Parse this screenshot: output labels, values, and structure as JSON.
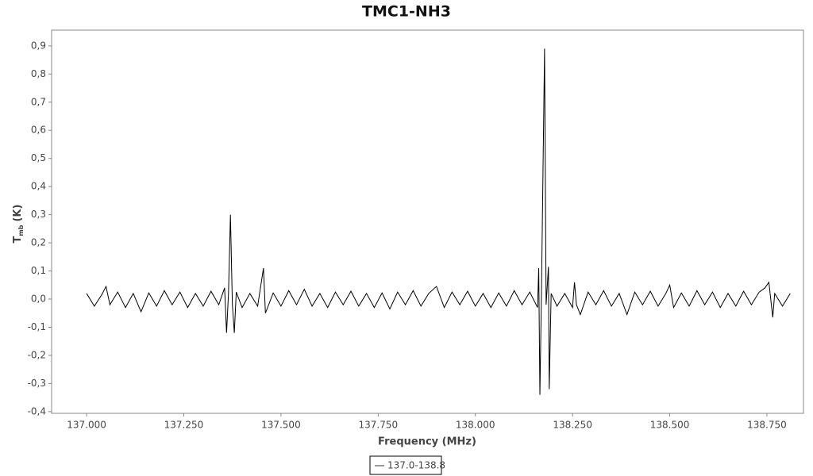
{
  "chart_data": {
    "type": "line",
    "title": "TMC1-NH3",
    "x_label": "Frequency (MHz)",
    "y_label": {
      "main": "T",
      "sub": "mb",
      "unit": "(K)"
    },
    "xlim": [
      136.91,
      138.844
    ],
    "ylim": [
      -0.406,
      0.956
    ],
    "xticks": [
      {
        "value": 137.0,
        "label": "137.000"
      },
      {
        "value": 137.25,
        "label": "137.250"
      },
      {
        "value": 137.5,
        "label": "137.500"
      },
      {
        "value": 137.75,
        "label": "137.750"
      },
      {
        "value": 138.0,
        "label": "138.000"
      },
      {
        "value": 138.25,
        "label": "138.250"
      },
      {
        "value": 138.5,
        "label": "138.500"
      },
      {
        "value": 138.75,
        "label": "138.750"
      }
    ],
    "yticks": [
      {
        "value": -0.4,
        "label": "-0,4"
      },
      {
        "value": -0.3,
        "label": "-0,3"
      },
      {
        "value": -0.2,
        "label": "-0,2"
      },
      {
        "value": -0.1,
        "label": "-0,1"
      },
      {
        "value": 0,
        "label": "0,0"
      },
      {
        "value": 0.1,
        "label": "0,1"
      },
      {
        "value": 0.2,
        "label": "0,2"
      },
      {
        "value": 0.3,
        "label": "0,3"
      },
      {
        "value": 0.4,
        "label": "0,4"
      },
      {
        "value": 0.5,
        "label": "0,5"
      },
      {
        "value": 0.6,
        "label": "0,6"
      },
      {
        "value": 0.7,
        "label": "0,7"
      },
      {
        "value": 0.8,
        "label": "0,8"
      },
      {
        "value": 0.9,
        "label": "0,9"
      }
    ],
    "grid": false,
    "legend": "bottom",
    "series": [
      {
        "name": "137.0-138.8",
        "color": "#000000",
        "x": [
          137.0,
          137.02,
          137.04,
          137.05,
          137.06,
          137.08,
          137.1,
          137.12,
          137.14,
          137.16,
          137.18,
          137.2,
          137.22,
          137.24,
          137.26,
          137.28,
          137.3,
          137.32,
          137.34,
          137.355,
          137.36,
          137.365,
          137.37,
          137.375,
          137.38,
          137.385,
          137.4,
          137.42,
          137.44,
          137.455,
          137.46,
          137.48,
          137.5,
          137.52,
          137.54,
          137.56,
          137.58,
          137.6,
          137.62,
          137.64,
          137.66,
          137.68,
          137.7,
          137.72,
          137.74,
          137.76,
          137.78,
          137.8,
          137.82,
          137.84,
          137.86,
          137.88,
          137.9,
          137.92,
          137.94,
          137.96,
          137.98,
          138.0,
          138.02,
          138.04,
          138.06,
          138.08,
          138.1,
          138.12,
          138.14,
          138.16,
          138.163,
          138.166,
          138.17,
          138.178,
          138.182,
          138.188,
          138.19,
          138.195,
          138.21,
          138.23,
          138.25,
          138.255,
          138.26,
          138.27,
          138.29,
          138.31,
          138.33,
          138.35,
          138.37,
          138.39,
          138.41,
          138.43,
          138.45,
          138.47,
          138.49,
          138.5,
          138.51,
          138.53,
          138.55,
          138.57,
          138.59,
          138.61,
          138.63,
          138.65,
          138.67,
          138.69,
          138.71,
          138.73,
          138.745,
          138.755,
          138.765,
          138.77,
          138.79,
          138.81
        ],
        "values": [
          0.02,
          -0.025,
          0.018,
          0.045,
          -0.02,
          0.025,
          -0.03,
          0.02,
          -0.045,
          0.022,
          -0.025,
          0.03,
          -0.02,
          0.025,
          -0.03,
          0.02,
          -0.025,
          0.028,
          -0.02,
          0.04,
          -0.12,
          0.02,
          0.3,
          -0.02,
          -0.12,
          0.025,
          -0.03,
          0.02,
          -0.025,
          0.11,
          -0.05,
          0.022,
          -0.025,
          0.03,
          -0.02,
          0.035,
          -0.025,
          0.02,
          -0.03,
          0.025,
          -0.02,
          0.028,
          -0.025,
          0.02,
          -0.03,
          0.022,
          -0.035,
          0.025,
          -0.02,
          0.03,
          -0.025,
          0.02,
          0.045,
          -0.03,
          0.025,
          -0.02,
          0.028,
          -0.025,
          0.02,
          -0.03,
          0.022,
          -0.025,
          0.03,
          -0.02,
          0.025,
          -0.03,
          0.11,
          -0.34,
          0.02,
          0.89,
          -0.02,
          0.115,
          -0.32,
          0.02,
          -0.025,
          0.02,
          -0.03,
          0.06,
          -0.02,
          -0.055,
          0.025,
          -0.02,
          0.03,
          -0.025,
          0.02,
          -0.055,
          0.025,
          -0.02,
          0.028,
          -0.025,
          0.02,
          0.05,
          -0.03,
          0.022,
          -0.025,
          0.03,
          -0.02,
          0.025,
          -0.03,
          0.02,
          -0.025,
          0.028,
          -0.02,
          0.025,
          0.04,
          0.06,
          -0.065,
          0.02,
          -0.025,
          0.02
        ]
      }
    ]
  }
}
